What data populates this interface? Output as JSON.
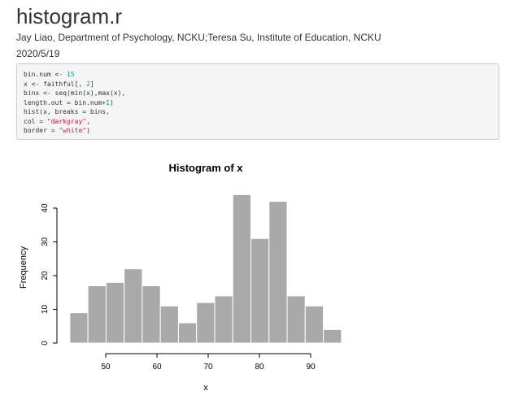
{
  "document": {
    "title": "histogram.r",
    "author": "Jay Liao, Department of Psychology, NCKU;Teresa Su, Institute of Education, NCKU",
    "date": "2020/5/19"
  },
  "code": {
    "lines": [
      [
        {
          "t": "bin.num <- ",
          "k": "plain"
        },
        {
          "t": "15",
          "k": "num"
        }
      ],
      [
        {
          "t": "x <- faithful[, ",
          "k": "plain"
        },
        {
          "t": "2",
          "k": "num"
        },
        {
          "t": "]",
          "k": "plain"
        }
      ],
      [
        {
          "t": "bins <- seq(min(x),max(x),",
          "k": "plain"
        }
      ],
      [
        {
          "t": "length.out = bin.num+",
          "k": "plain"
        },
        {
          "t": "1",
          "k": "num"
        },
        {
          "t": ")",
          "k": "plain"
        }
      ],
      [
        {
          "t": "hist(x, breaks = bins,",
          "k": "plain"
        }
      ],
      [
        {
          "t": "col = ",
          "k": "plain"
        },
        {
          "t": "\"darkgray\"",
          "k": "str"
        },
        {
          "t": ",",
          "k": "plain"
        }
      ],
      [
        {
          "t": "border = ",
          "k": "plain"
        },
        {
          "t": "\"white\"",
          "k": "str"
        },
        {
          "t": ")",
          "k": "plain"
        }
      ]
    ]
  },
  "colors": {
    "bar_fill": "#a9a9a9",
    "bar_border": "#ffffff",
    "code_number": "#009999",
    "code_string": "#dd1144"
  },
  "chart_data": {
    "type": "bar",
    "title": "Histogram of x",
    "xlabel": "x",
    "ylabel": "Frequency",
    "bin_edges": [
      43,
      46.53,
      50.07,
      53.6,
      57.13,
      60.67,
      64.2,
      67.73,
      71.27,
      74.8,
      78.33,
      81.87,
      85.4,
      88.93,
      92.47,
      96
    ],
    "values": [
      9,
      17,
      18,
      22,
      17,
      11,
      6,
      12,
      14,
      44,
      31,
      42,
      14,
      11,
      4
    ],
    "xlim": [
      40,
      100
    ],
    "ylim": [
      0,
      45
    ],
    "x_ticks": [
      50,
      60,
      70,
      80,
      90
    ],
    "y_ticks": [
      0,
      10,
      20,
      30,
      40
    ],
    "grid": false,
    "legend": "none"
  }
}
